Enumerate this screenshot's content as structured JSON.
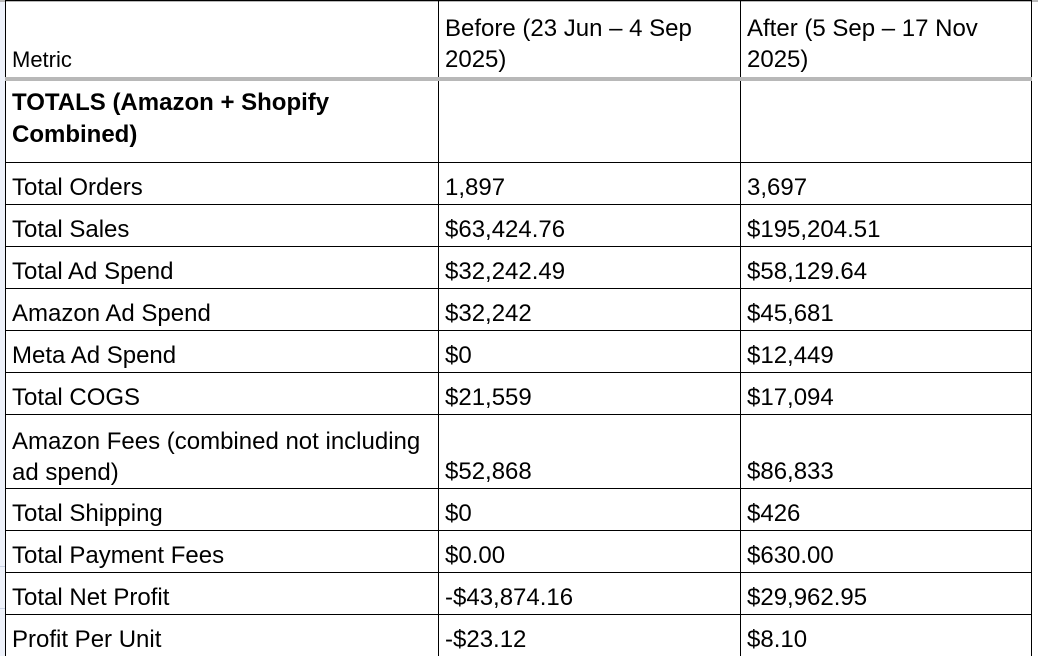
{
  "table": {
    "headers": {
      "metric": "Metric",
      "before": "Before (23 Jun – 4 Sep 2025)",
      "after": "After (5 Sep – 17 Nov 2025)"
    },
    "section": {
      "label": "TOTALS (Amazon + Shopify Combined)",
      "before": "",
      "after": ""
    },
    "rows": [
      {
        "metric": "Total Orders",
        "before": "1,897",
        "after": "3,697"
      },
      {
        "metric": "Total Sales",
        "before": "$63,424.76",
        "after": "$195,204.51"
      },
      {
        "metric": "Total Ad Spend",
        "before": "$32,242.49",
        "after": "$58,129.64"
      },
      {
        "metric": "Amazon Ad Spend",
        "before": "$32,242",
        "after": "$45,681"
      },
      {
        "metric": "Meta Ad Spend",
        "before": "$0",
        "after": "$12,449"
      },
      {
        "metric": "Total COGS",
        "before": "$21,559",
        "after": "$17,094"
      },
      {
        "metric": "Amazon Fees (combined not including ad spend)",
        "before": "$52,868",
        "after": "$86,833"
      },
      {
        "metric": "Total Shipping",
        "before": "$0",
        "after": "$426"
      },
      {
        "metric": "Total Payment Fees",
        "before": "$0.00",
        "after": "$630.00"
      },
      {
        "metric": "Total Net Profit",
        "before": "-$43,874.16",
        "after": "$29,962.95"
      },
      {
        "metric": "Profit Per Unit",
        "before": "-$23.12",
        "after": "$8.10"
      }
    ]
  }
}
